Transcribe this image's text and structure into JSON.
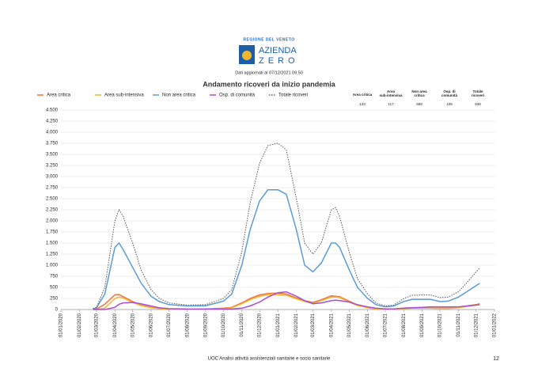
{
  "header": {
    "region": "REGIONE DEL VENETO",
    "brand_top": "AZIENDA",
    "brand_bottom": "ZERO",
    "updated": "Dati aggiornati al 07/12/2021 09.50"
  },
  "chart_data": {
    "type": "line",
    "title": "Andamento ricoveri da inizio pandemia",
    "x": [
      "24/02/2020",
      "01/03/2020",
      "15/03/2020",
      "01/04/2020",
      "08/04/2020",
      "15/04/2020",
      "01/05/2020",
      "15/05/2020",
      "01/06/2020",
      "15/06/2020",
      "01/07/2020",
      "01/08/2020",
      "01/09/2020",
      "01/10/2020",
      "15/10/2020",
      "01/11/2020",
      "15/11/2020",
      "01/12/2020",
      "15/12/2020",
      "01/01/2021",
      "15/01/2021",
      "01/02/2021",
      "15/02/2021",
      "01/03/2021",
      "15/03/2021",
      "01/04/2021",
      "08/04/2021",
      "15/04/2021",
      "01/05/2021",
      "15/05/2021",
      "01/06/2021",
      "15/06/2021",
      "01/07/2021",
      "15/07/2021",
      "01/08/2021",
      "15/08/2021",
      "01/09/2021",
      "15/09/2021",
      "01/10/2021",
      "15/10/2021",
      "01/11/2021",
      "15/11/2021",
      "01/12/2021",
      "07/12/2021"
    ],
    "series": [
      {
        "name": "Area critica",
        "color": "#e8743b",
        "dotted": false,
        "values": [
          5,
          10,
          120,
          330,
          340,
          290,
          180,
          100,
          50,
          20,
          10,
          5,
          10,
          30,
          50,
          150,
          250,
          330,
          360,
          370,
          350,
          260,
          200,
          160,
          220,
          310,
          300,
          290,
          190,
          100,
          50,
          20,
          8,
          10,
          30,
          40,
          40,
          40,
          30,
          30,
          50,
          80,
          110,
          133
        ]
      },
      {
        "name": "Area sub-intensiva",
        "color": "#f2b531",
        "dotted": false,
        "values": [
          0,
          0,
          30,
          250,
          280,
          260,
          160,
          90,
          40,
          20,
          10,
          5,
          5,
          20,
          40,
          130,
          220,
          300,
          330,
          330,
          320,
          240,
          180,
          140,
          200,
          280,
          280,
          270,
          170,
          90,
          40,
          15,
          5,
          5,
          20,
          30,
          30,
          30,
          25,
          25,
          40,
          70,
          100,
          117
        ]
      },
      {
        "name": "Non area critica",
        "color": "#5b9bd5",
        "dotted": false,
        "values": [
          15,
          40,
          350,
          1400,
          1500,
          1350,
          950,
          600,
          300,
          180,
          110,
          80,
          85,
          190,
          350,
          1000,
          1800,
          2450,
          2700,
          2700,
          2600,
          1800,
          1000,
          850,
          1050,
          1500,
          1500,
          1400,
          900,
          500,
          250,
          110,
          60,
          80,
          180,
          230,
          230,
          230,
          180,
          190,
          280,
          400,
          540,
          589
        ]
      },
      {
        "name": "Osp. di comunità",
        "color": "#a64fd1",
        "dotted": false,
        "values": [
          0,
          0,
          0,
          50,
          120,
          150,
          160,
          130,
          80,
          40,
          20,
          10,
          10,
          10,
          10,
          30,
          80,
          170,
          280,
          380,
          400,
          300,
          200,
          130,
          150,
          200,
          210,
          200,
          170,
          110,
          60,
          30,
          15,
          15,
          30,
          40,
          50,
          60,
          60,
          60,
          60,
          80,
          100,
          109
        ]
      },
      {
        "name": "Totale ricoveri",
        "color": "#555555",
        "dotted": true,
        "values": [
          20,
          50,
          500,
          2000,
          2250,
          2100,
          1500,
          900,
          450,
          250,
          150,
          100,
          110,
          250,
          450,
          1300,
          2400,
          3300,
          3700,
          3750,
          3600,
          2500,
          1500,
          1250,
          1500,
          2250,
          2300,
          2100,
          1300,
          700,
          350,
          150,
          80,
          100,
          250,
          320,
          330,
          330,
          270,
          280,
          400,
          600,
          850,
          938
        ]
      }
    ],
    "xlim": [
      "01/01/2020",
      "01/01/2022"
    ],
    "xticks": [
      "01/01/2020",
      "01/02/2020",
      "01/03/2020",
      "01/04/2020",
      "01/05/2020",
      "01/06/2020",
      "01/07/2020",
      "01/08/2020",
      "01/09/2020",
      "01/10/2020",
      "01/11/2020",
      "01/12/2020",
      "01/01/2021",
      "01/02/2021",
      "01/03/2021",
      "01/04/2021",
      "01/05/2021",
      "01/06/2021",
      "01/07/2021",
      "01/08/2021",
      "01/09/2021",
      "01/10/2021",
      "01/11/2021",
      "01/12/2021",
      "01/01/2022"
    ],
    "ylim": [
      0,
      4500
    ],
    "yticks": [
      0,
      250,
      500,
      750,
      {
        "value": 1000,
        "label": "1.000"
      },
      {
        "value": 1250,
        "label": "1.250"
      },
      {
        "value": 1500,
        "label": "1.500"
      },
      {
        "value": 1750,
        "label": "1.750"
      },
      {
        "value": 2000,
        "label": "2.000"
      },
      {
        "value": 2250,
        "label": "2.250"
      },
      {
        "value": 2500,
        "label": "2.500"
      },
      {
        "value": 2750,
        "label": "2.750"
      },
      {
        "value": 3000,
        "label": "3.000"
      },
      {
        "value": 3250,
        "label": "3.250"
      },
      {
        "value": 3500,
        "label": "3.500"
      },
      {
        "value": 3750,
        "label": "3.750"
      },
      {
        "value": 4000,
        "label": "4.000"
      },
      {
        "value": 4250,
        "label": "4.250"
      },
      {
        "value": 4500,
        "label": "4.500"
      }
    ],
    "grid": true,
    "summary": {
      "headers": [
        "Area critica",
        "Area sub-intensiva",
        "Non area critica",
        "Osp. di comunità",
        "Totale ricoveri"
      ],
      "values": [
        133,
        117,
        589,
        109,
        938
      ]
    }
  },
  "footer": {
    "text": "UOC Analisi attività assistenziali sanitarie e socio sanitarie",
    "page": "12"
  }
}
